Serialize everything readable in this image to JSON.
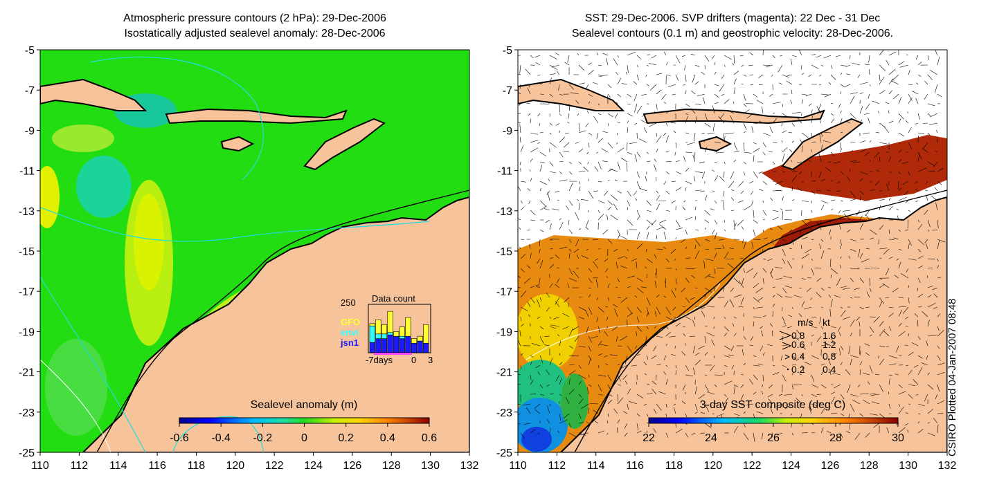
{
  "left_panel": {
    "title_line1": "Atmospheric pressure contours (2 hPa): 29-Dec-2006",
    "title_line2": "Isostatically adjusted sealevel anomaly: 28-Dec-2006",
    "colorbar_label": "Sealevel anomaly (m)",
    "colorbar_ticks": [
      "-0.6",
      "-0.4",
      "-0.2",
      "0",
      "0.2",
      "0.4",
      "0.6"
    ],
    "inset": {
      "title": "Data count",
      "ymax_label": "250",
      "legend": [
        {
          "name": "GFO",
          "color": "#ffff33"
        },
        {
          "name": "envi",
          "color": "#33ffff"
        },
        {
          "name": "jsn1",
          "color": "#1a1aff"
        }
      ],
      "x_tick_labels": [
        "-7days",
        "0",
        "3"
      ],
      "bars": [
        {
          "gfo": 0.05,
          "envi": 0.35,
          "jsn1": 0.22
        },
        {
          "gfo": 0.3,
          "envi": 0.1,
          "jsn1": 0.3
        },
        {
          "gfo": 0.2,
          "envi": 0.1,
          "jsn1": 0.3
        },
        {
          "gfo": 0.45,
          "envi": 0.05,
          "jsn1": 0.38
        },
        {
          "gfo": 0.1,
          "envi": 0.0,
          "jsn1": 0.35
        },
        {
          "gfo": 0.2,
          "envi": 0.05,
          "jsn1": 0.3
        },
        {
          "gfo": 0.4,
          "envi": 0.0,
          "jsn1": 0.35
        },
        {
          "gfo": 0.1,
          "envi": 0.0,
          "jsn1": 0.2
        },
        {
          "gfo": 0.1,
          "envi": 0.0,
          "jsn1": 0.25
        },
        {
          "gfo": 0.4,
          "envi": 0.0,
          "jsn1": 0.2
        }
      ]
    }
  },
  "right_panel": {
    "title_line1": "SST: 29-Dec-2006. SVP drifters (magenta): 22 Dec - 31 Dec",
    "title_line2": "Sealevel contours (0.1 m) and geostrophic velocity: 28-Dec-2006.",
    "colorbar_label": "3-day SST composite (deg C)",
    "colorbar_ticks": [
      "22",
      "24",
      "26",
      "28",
      "30"
    ],
    "velocity_key": {
      "header_ms": "m/s",
      "header_kt": "kt",
      "rows": [
        {
          "ms": "0.8",
          "kt": "1.6"
        },
        {
          "ms": "0.6",
          "kt": "1.2"
        },
        {
          "ms": "0.4",
          "kt": "0.8"
        },
        {
          "ms": "0.2",
          "kt": "0.4"
        }
      ]
    }
  },
  "axes": {
    "x_ticks": [
      "110",
      "112",
      "114",
      "116",
      "118",
      "120",
      "122",
      "124",
      "126",
      "128",
      "130",
      "132"
    ],
    "y_ticks": [
      "-5",
      "-7",
      "-9",
      "-11",
      "-13",
      "-15",
      "-17",
      "-19",
      "-21",
      "-23",
      "-25"
    ]
  },
  "credit": "CSIRO Plotted 04-Jan-2007 08:48",
  "colors": {
    "land": "#f7c39a",
    "ocean_green": "#22dd11",
    "sst_hot": "#a01a08",
    "coast": "#000000"
  }
}
